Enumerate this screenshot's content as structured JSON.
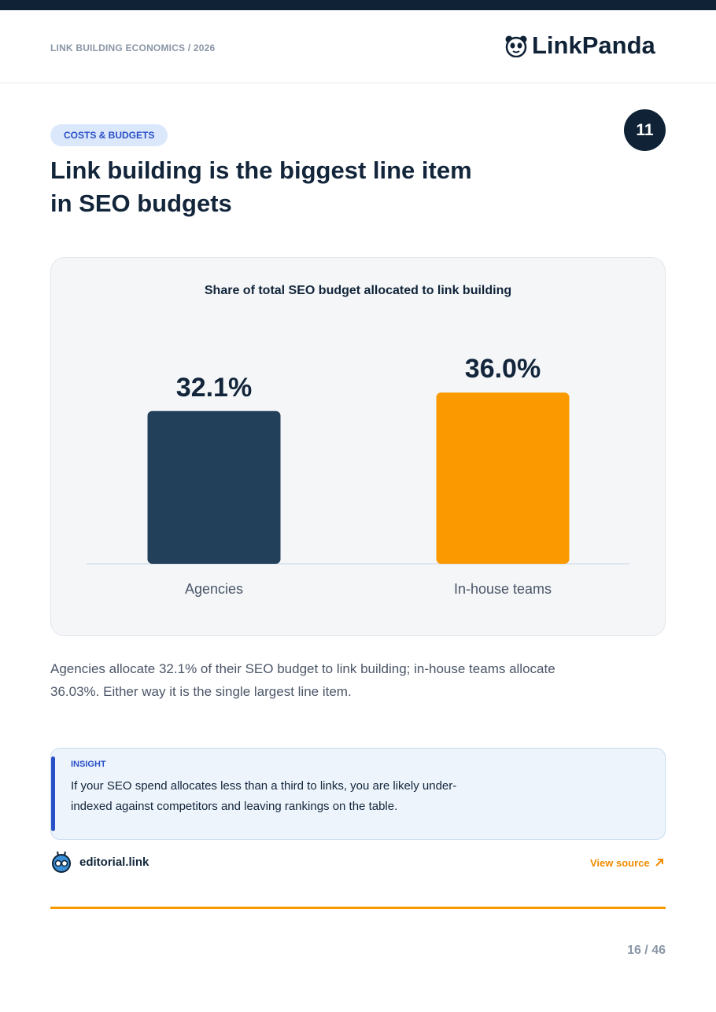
{
  "header": {
    "kicker": "LINK BUILDING ECONOMICS / 2026",
    "brand": "LinkPanda"
  },
  "tag": "COSTS & BUDGETS",
  "section_number": "11",
  "title_lines": [
    "Link building is the biggest line item",
    "in SEO budgets"
  ],
  "chart_data": {
    "type": "bar",
    "title": "Share of total SEO budget allocated to link building",
    "categories": [
      "Agencies",
      "In-house teams"
    ],
    "values": [
      32.1,
      36.0
    ],
    "value_labels": [
      "32.1%",
      "36.0%"
    ],
    "colors": [
      "#22405a",
      "#fb9a00"
    ]
  },
  "description": "Agencies allocate 32.1% of their SEO budget to link building; in-house teams allocate 36.03%. Either way it is the single largest line item.",
  "insight": {
    "label": "INSIGHT",
    "text": "If your SEO spend allocates less than a third to links, you are likely under-indexed against competitors and leaving rankings on the table."
  },
  "source": {
    "name": "editorial.link",
    "link": "View source"
  },
  "page": "16 / 46"
}
